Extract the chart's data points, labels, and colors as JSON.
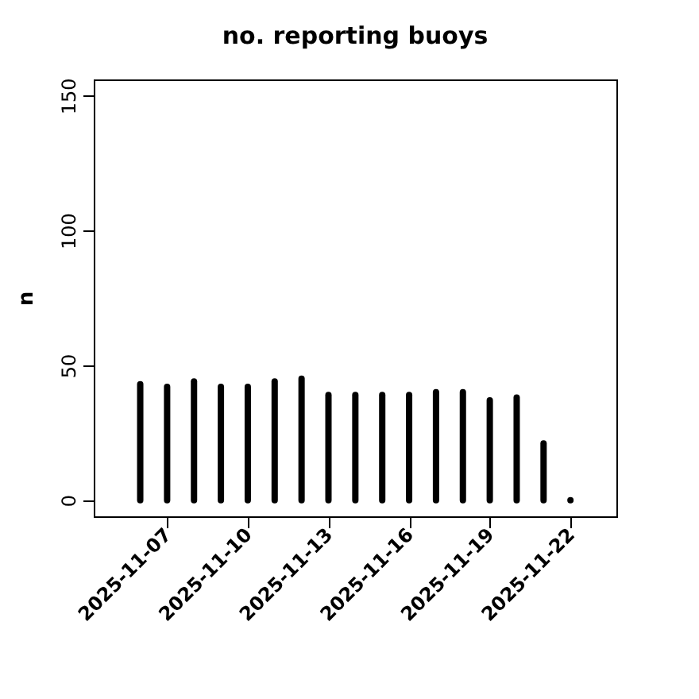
{
  "chart_data": {
    "type": "bar",
    "title": "no. reporting buoys",
    "ylabel": "n",
    "x": [
      "2025-11-06",
      "2025-11-07",
      "2025-11-08",
      "2025-11-09",
      "2025-11-10",
      "2025-11-11",
      "2025-11-12",
      "2025-11-13",
      "2025-11-14",
      "2025-11-15",
      "2025-11-16",
      "2025-11-17",
      "2025-11-18",
      "2025-11-19",
      "2025-11-20",
      "2025-11-21",
      "2025-11-22"
    ],
    "values": [
      43,
      42,
      44,
      42,
      42,
      44,
      45,
      39,
      39,
      39,
      39,
      40,
      40,
      37,
      38,
      21,
      0
    ],
    "color": "#000000",
    "xlim": [
      "2025-11-04T06:30",
      "2025-11-23T17:00"
    ],
    "xticks": [
      "2025-11-07",
      "2025-11-10",
      "2025-11-13",
      "2025-11-16",
      "2025-11-19",
      "2025-11-22"
    ],
    "ylim": [
      -6,
      156
    ],
    "yticks": [
      0,
      50,
      100,
      150
    ],
    "grid": false
  }
}
